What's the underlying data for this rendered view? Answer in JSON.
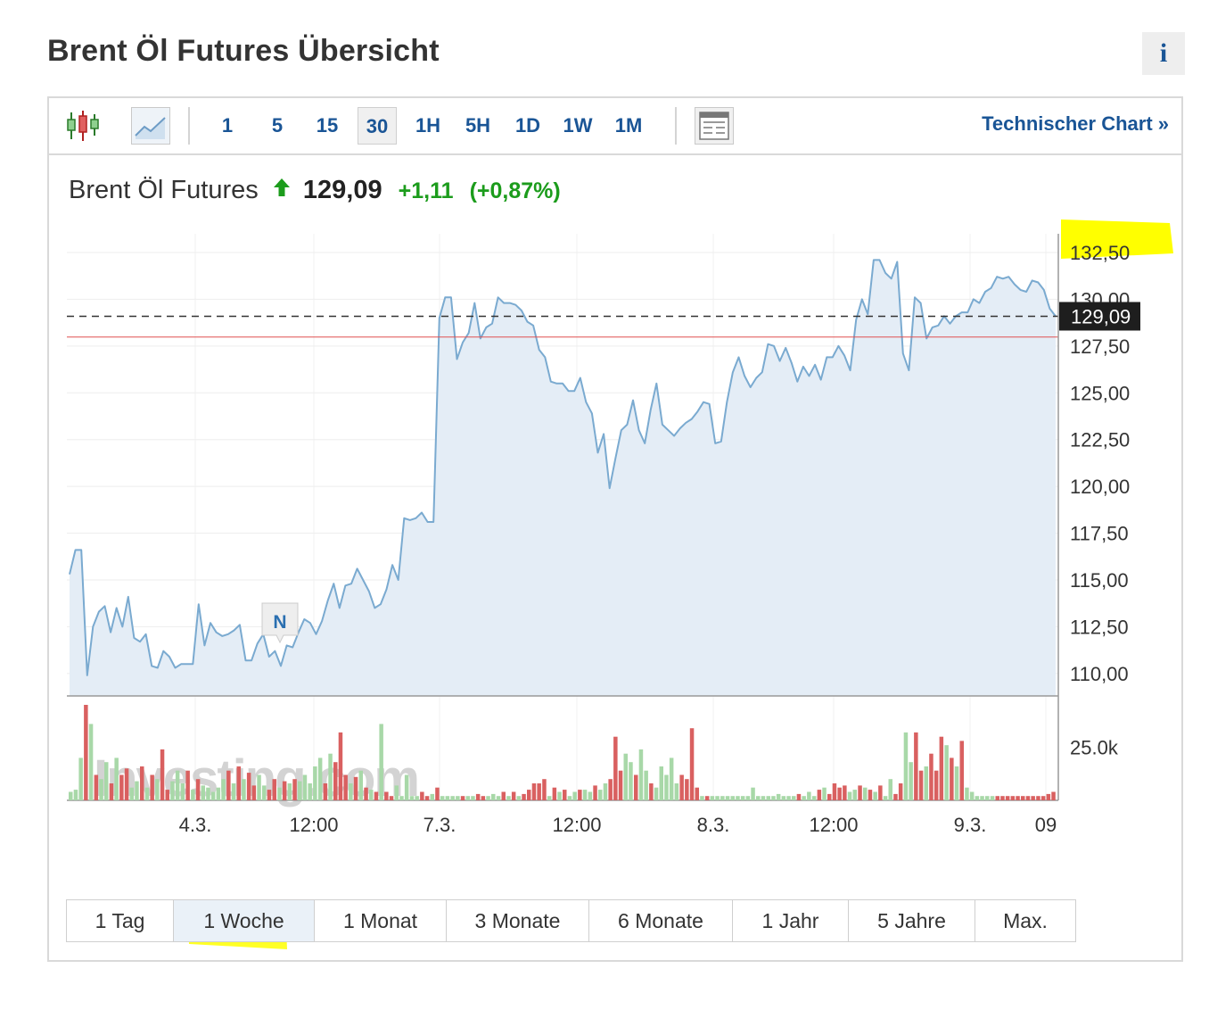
{
  "page": {
    "title": "Brent Öl Futures Übersicht",
    "info_icon": "i"
  },
  "toolbar": {
    "candlestick_icon": "candlestick-chart-icon",
    "area_icon": "area-chart-icon",
    "timeframes": [
      "1",
      "5",
      "15",
      "30",
      "1H",
      "5H",
      "1D",
      "1W",
      "1M"
    ],
    "active_timeframe": "30",
    "table_icon": "table-view-icon",
    "tech_chart_label": "Technischer Chart »"
  },
  "quote": {
    "name": "Brent Öl Futures",
    "price": "129,09",
    "change": "+1,11",
    "change_pct": "(+0,87%)",
    "direction": "up"
  },
  "watermark": "Investing.com",
  "marker": {
    "label": "N"
  },
  "ranges": [
    "1 Tag",
    "1 Woche",
    "1 Monat",
    "3 Monate",
    "6 Monate",
    "1 Jahr",
    "5 Jahre",
    "Max."
  ],
  "active_range": "1 Woche",
  "colors": {
    "line": "#7aaad0",
    "area": "#e4edf6",
    "up_volume": "#a8d8a8",
    "down_volume": "#d96060",
    "highlight": "#ffff00",
    "link": "#1a5596",
    "positive": "#1c9c1c",
    "previous_close_line": "#e05050"
  },
  "chart_data": {
    "type": "line",
    "y_ticks": [
      "132,50",
      "130,00",
      "127,50",
      "125,00",
      "122,50",
      "120,00",
      "117,50",
      "115,00",
      "112,50",
      "110,00"
    ],
    "y_tick_values": [
      132.5,
      130.0,
      127.5,
      125.0,
      122.5,
      120.0,
      117.5,
      115.0,
      112.5,
      110.0
    ],
    "ylim": [
      108.8,
      133.5
    ],
    "x_tick_labels": [
      "4.3.",
      "12:00",
      "7.3.",
      "12:00",
      "8.3.",
      "12:00",
      "9.3.",
      "09"
    ],
    "last_price": 129.09,
    "last_price_label": "129,09",
    "previous_close": 127.98,
    "prices": [
      115.3,
      116.6,
      116.6,
      109.9,
      112.5,
      113.3,
      113.6,
      112.2,
      113.5,
      112.5,
      114.1,
      111.9,
      111.7,
      112.1,
      110.4,
      110.3,
      111.2,
      110.9,
      110.3,
      110.5,
      110.5,
      110.5,
      113.7,
      111.5,
      112.7,
      112.2,
      112.0,
      112.1,
      112.3,
      112.6,
      110.7,
      110.7,
      111.6,
      112.1,
      110.9,
      111.2,
      110.4,
      111.5,
      111.4,
      112.2,
      112.9,
      112.7,
      112.1,
      112.8,
      113.9,
      114.8,
      113.5,
      114.7,
      114.8,
      115.6,
      115.0,
      114.4,
      113.5,
      113.7,
      114.5,
      115.8,
      115.0,
      118.3,
      118.2,
      118.3,
      118.6,
      118.1,
      118.1,
      129.0,
      130.1,
      130.1,
      126.8,
      127.7,
      128.2,
      129.8,
      127.9,
      128.5,
      128.7,
      130.1,
      129.8,
      129.8,
      129.7,
      129.4,
      128.8,
      128.6,
      127.3,
      126.9,
      125.6,
      125.5,
      125.5,
      125.1,
      125.1,
      125.8,
      124.5,
      123.9,
      121.8,
      122.8,
      119.9,
      121.5,
      123.0,
      123.3,
      124.6,
      123.0,
      122.3,
      124.1,
      125.5,
      123.3,
      123.0,
      122.7,
      123.1,
      123.4,
      123.6,
      124.0,
      124.5,
      124.4,
      122.3,
      122.4,
      124.5,
      126.1,
      126.9,
      125.9,
      125.3,
      125.8,
      126.1,
      127.6,
      127.5,
      126.7,
      127.4,
      126.6,
      125.6,
      126.4,
      125.9,
      126.5,
      125.7,
      126.9,
      126.9,
      127.5,
      127.0,
      126.2,
      128.9,
      130.0,
      129.2,
      132.1,
      132.1,
      131.4,
      131.1,
      132.0,
      127.1,
      126.2,
      130.1,
      129.8,
      127.9,
      128.5,
      128.6,
      129.1,
      128.7,
      129.1,
      129.3,
      129.3,
      130.0,
      129.8,
      130.4,
      130.6,
      131.2,
      131.1,
      131.2,
      130.8,
      130.5,
      130.4,
      131.0,
      130.9,
      130.5,
      129.5,
      129.09
    ],
    "volume_axis_label": "25.0k",
    "volume_tick_value": 25000,
    "volume_max": 45000,
    "volumes": [
      [
        4000,
        "up"
      ],
      [
        5000,
        "up"
      ],
      [
        20000,
        "up"
      ],
      [
        45000,
        "down"
      ],
      [
        36000,
        "up"
      ],
      [
        12000,
        "down"
      ],
      [
        10000,
        "up"
      ],
      [
        18000,
        "up"
      ],
      [
        8000,
        "down"
      ],
      [
        20000,
        "up"
      ],
      [
        12000,
        "down"
      ],
      [
        15000,
        "down"
      ],
      [
        6000,
        "up"
      ],
      [
        9000,
        "up"
      ],
      [
        16000,
        "down"
      ],
      [
        6000,
        "up"
      ],
      [
        12000,
        "down"
      ],
      [
        10000,
        "up"
      ],
      [
        24000,
        "down"
      ],
      [
        5000,
        "down"
      ],
      [
        9000,
        "up"
      ],
      [
        14000,
        "up"
      ],
      [
        8000,
        "up"
      ],
      [
        14000,
        "down"
      ],
      [
        5000,
        "up"
      ],
      [
        10000,
        "down"
      ],
      [
        7000,
        "up"
      ],
      [
        6000,
        "up"
      ],
      [
        4000,
        "up"
      ],
      [
        6000,
        "up"
      ],
      [
        10000,
        "up"
      ],
      [
        14000,
        "down"
      ],
      [
        8000,
        "up"
      ],
      [
        16000,
        "down"
      ],
      [
        10000,
        "up"
      ],
      [
        13000,
        "down"
      ],
      [
        7000,
        "down"
      ],
      [
        12000,
        "up"
      ],
      [
        7000,
        "up"
      ],
      [
        5000,
        "down"
      ],
      [
        10000,
        "down"
      ],
      [
        6000,
        "up"
      ],
      [
        9000,
        "down"
      ],
      [
        8000,
        "up"
      ],
      [
        10000,
        "down"
      ],
      [
        9000,
        "up"
      ],
      [
        12000,
        "up"
      ],
      [
        8000,
        "up"
      ],
      [
        16000,
        "up"
      ],
      [
        20000,
        "up"
      ],
      [
        8000,
        "down"
      ],
      [
        22000,
        "up"
      ],
      [
        18000,
        "down"
      ],
      [
        32000,
        "down"
      ],
      [
        12000,
        "down"
      ],
      [
        8000,
        "up"
      ],
      [
        11000,
        "down"
      ],
      [
        14000,
        "up"
      ],
      [
        6000,
        "down"
      ],
      [
        5000,
        "up"
      ],
      [
        4000,
        "down"
      ],
      [
        36000,
        "up"
      ],
      [
        4000,
        "down"
      ],
      [
        2000,
        "down"
      ],
      [
        7000,
        "up"
      ],
      [
        2000,
        "up"
      ],
      [
        12000,
        "up"
      ],
      [
        2000,
        "up"
      ],
      [
        2000,
        "up"
      ],
      [
        4000,
        "down"
      ],
      [
        2000,
        "down"
      ],
      [
        3000,
        "up"
      ],
      [
        6000,
        "down"
      ],
      [
        2000,
        "up"
      ],
      [
        2000,
        "up"
      ],
      [
        2000,
        "up"
      ],
      [
        2000,
        "up"
      ],
      [
        2000,
        "down"
      ],
      [
        2000,
        "up"
      ],
      [
        2000,
        "up"
      ],
      [
        3000,
        "down"
      ],
      [
        2000,
        "down"
      ],
      [
        2000,
        "up"
      ],
      [
        3000,
        "up"
      ],
      [
        2000,
        "up"
      ],
      [
        4000,
        "down"
      ],
      [
        2000,
        "up"
      ],
      [
        4000,
        "down"
      ],
      [
        2000,
        "up"
      ],
      [
        3000,
        "down"
      ],
      [
        5000,
        "down"
      ],
      [
        8000,
        "down"
      ],
      [
        8000,
        "down"
      ],
      [
        10000,
        "down"
      ],
      [
        2000,
        "up"
      ],
      [
        6000,
        "down"
      ],
      [
        4000,
        "up"
      ],
      [
        5000,
        "down"
      ],
      [
        2000,
        "up"
      ],
      [
        4000,
        "up"
      ],
      [
        5000,
        "down"
      ],
      [
        5000,
        "up"
      ],
      [
        4000,
        "up"
      ],
      [
        7000,
        "down"
      ],
      [
        5000,
        "up"
      ],
      [
        8000,
        "up"
      ],
      [
        10000,
        "down"
      ],
      [
        30000,
        "down"
      ],
      [
        14000,
        "down"
      ],
      [
        22000,
        "up"
      ],
      [
        18000,
        "up"
      ],
      [
        12000,
        "down"
      ],
      [
        24000,
        "up"
      ],
      [
        14000,
        "up"
      ],
      [
        8000,
        "down"
      ],
      [
        6000,
        "up"
      ],
      [
        16000,
        "up"
      ],
      [
        12000,
        "up"
      ],
      [
        20000,
        "up"
      ],
      [
        8000,
        "up"
      ],
      [
        12000,
        "down"
      ],
      [
        10000,
        "down"
      ],
      [
        34000,
        "down"
      ],
      [
        6000,
        "down"
      ],
      [
        2000,
        "up"
      ],
      [
        2000,
        "down"
      ],
      [
        2000,
        "up"
      ],
      [
        2000,
        "up"
      ],
      [
        2000,
        "up"
      ],
      [
        2000,
        "up"
      ],
      [
        2000,
        "up"
      ],
      [
        2000,
        "up"
      ],
      [
        2000,
        "up"
      ],
      [
        2000,
        "up"
      ],
      [
        6000,
        "up"
      ],
      [
        2000,
        "up"
      ],
      [
        2000,
        "up"
      ],
      [
        2000,
        "up"
      ],
      [
        2000,
        "up"
      ],
      [
        3000,
        "up"
      ],
      [
        2000,
        "up"
      ],
      [
        2000,
        "up"
      ],
      [
        2000,
        "up"
      ],
      [
        3000,
        "down"
      ],
      [
        2000,
        "up"
      ],
      [
        4000,
        "up"
      ],
      [
        2000,
        "up"
      ],
      [
        5000,
        "down"
      ],
      [
        6000,
        "up"
      ],
      [
        3000,
        "down"
      ],
      [
        8000,
        "down"
      ],
      [
        6000,
        "down"
      ],
      [
        7000,
        "down"
      ],
      [
        4000,
        "up"
      ],
      [
        5000,
        "up"
      ],
      [
        7000,
        "down"
      ],
      [
        6000,
        "up"
      ],
      [
        5000,
        "down"
      ],
      [
        4000,
        "up"
      ],
      [
        7000,
        "down"
      ],
      [
        2000,
        "up"
      ],
      [
        10000,
        "up"
      ],
      [
        3000,
        "down"
      ],
      [
        8000,
        "down"
      ],
      [
        32000,
        "up"
      ],
      [
        18000,
        "up"
      ],
      [
        32000,
        "down"
      ],
      [
        14000,
        "down"
      ],
      [
        16000,
        "up"
      ],
      [
        22000,
        "down"
      ],
      [
        14000,
        "down"
      ],
      [
        30000,
        "down"
      ],
      [
        26000,
        "up"
      ],
      [
        20000,
        "down"
      ],
      [
        16000,
        "up"
      ],
      [
        28000,
        "down"
      ],
      [
        6000,
        "up"
      ],
      [
        4000,
        "up"
      ],
      [
        2000,
        "up"
      ],
      [
        2000,
        "up"
      ],
      [
        2000,
        "up"
      ],
      [
        2000,
        "up"
      ],
      [
        2000,
        "down"
      ],
      [
        2000,
        "down"
      ],
      [
        2000,
        "down"
      ],
      [
        2000,
        "down"
      ],
      [
        2000,
        "down"
      ],
      [
        2000,
        "down"
      ],
      [
        2000,
        "down"
      ],
      [
        2000,
        "down"
      ],
      [
        2000,
        "down"
      ],
      [
        2000,
        "down"
      ],
      [
        3000,
        "down"
      ],
      [
        4000,
        "down"
      ]
    ]
  }
}
